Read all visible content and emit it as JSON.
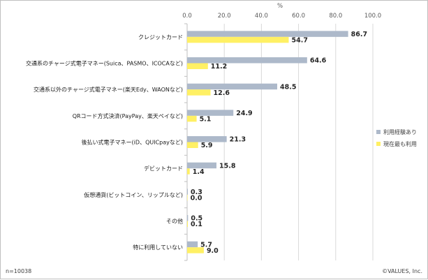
{
  "chart_data": {
    "type": "bar",
    "orientation": "horizontal",
    "unit_label": "%",
    "xlim": [
      0,
      100
    ],
    "x_ticks": [
      "0.0",
      "20.0",
      "40.0",
      "60.0",
      "80.0",
      "100.0"
    ],
    "grid": true,
    "legend_position": "right",
    "categories": [
      "クレジットカード",
      "交通系のチャージ式電子マネー(Suica、PASMO、ICOCAなど)",
      "交通系以外のチャージ式電子マネー(楽天Edy、WAONなど)",
      "QRコード方式決済(PayPay、楽天ペイなど)",
      "後払い式電子マネー(iD、QUICpayなど)",
      "デビットカード",
      "仮想通貨(ビットコイン、リップルなど)",
      "その他",
      "特に利用していない"
    ],
    "series": [
      {
        "name": "利用経験あり",
        "color": "#adb9ca",
        "values": [
          86.7,
          64.6,
          48.5,
          24.9,
          21.3,
          15.8,
          0.3,
          0.5,
          5.7
        ],
        "labels": [
          "86.7",
          "64.6",
          "48.5",
          "24.9",
          "21.3",
          "15.8",
          "0.3",
          "0.5",
          "5.7"
        ]
      },
      {
        "name": "現在最も利用",
        "color": "#fff064",
        "values": [
          54.7,
          11.2,
          12.6,
          5.1,
          5.9,
          1.4,
          0.0,
          0.1,
          9.0
        ],
        "labels": [
          "54.7",
          "11.2",
          "12.6",
          "5.1",
          "5.9",
          "1.4",
          "0.0",
          "0.1",
          "9.0"
        ]
      }
    ]
  },
  "footer": {
    "sample_size": "n=10038",
    "copyright": "©VALUES, Inc."
  }
}
